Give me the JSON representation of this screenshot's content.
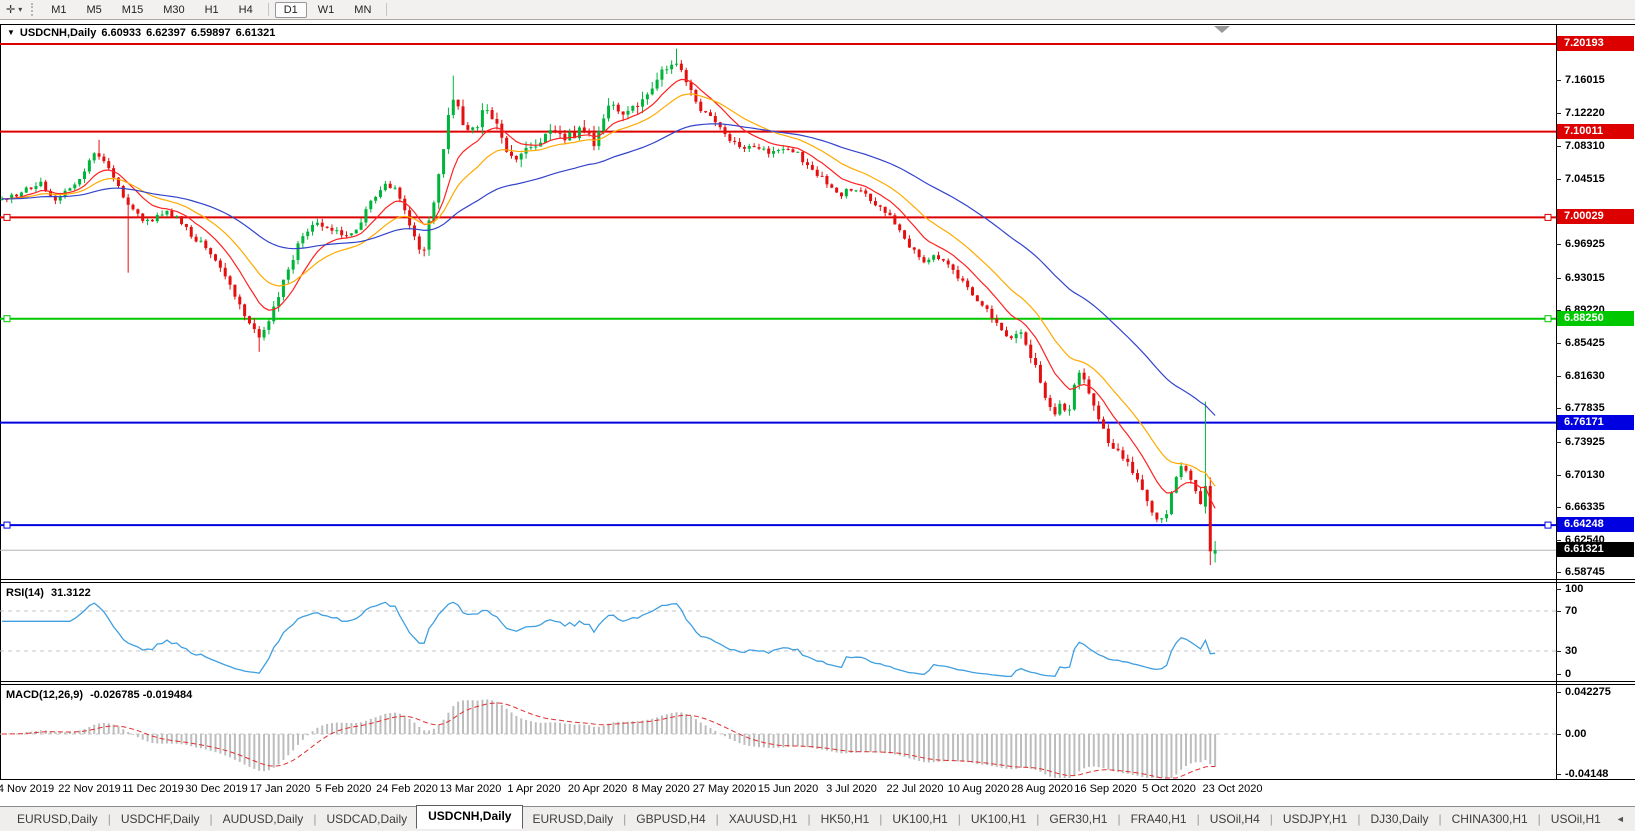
{
  "toolbar": {
    "timeframes": [
      "M1",
      "M5",
      "M15",
      "M30",
      "H1",
      "H4",
      "D1",
      "W1",
      "MN"
    ],
    "active_timeframe": "D1"
  },
  "icons": {
    "pointer_tool": "✛",
    "pointer_dropdown": "▾",
    "chart_dropdown": "▼",
    "scroll_left": "◄",
    "scroll_right": "►"
  },
  "chart_header": {
    "symbol": "USDCNH,Daily",
    "open": "6.60933",
    "high": "6.62397",
    "low": "6.59897",
    "close": "6.61321"
  },
  "rsi_panel": {
    "label": "RSI(14)",
    "value": "31.3122"
  },
  "macd_panel": {
    "label": "MACD(12,26,9)",
    "values": "-0.026785 -0.019484"
  },
  "time_axis": {
    "labels": [
      "4 Nov 2019",
      "22 Nov 2019",
      "11 Dec 2019",
      "30 Dec 2019",
      "17 Jan 2020",
      "5 Feb 2020",
      "24 Feb 2020",
      "13 Mar 2020",
      "1 Apr 2020",
      "20 Apr 2020",
      "8 May 2020",
      "27 May 2020",
      "15 Jun 2020",
      "3 Jul 2020",
      "22 Jul 2020",
      "10 Aug 2020",
      "28 Aug 2020",
      "16 Sep 2020",
      "5 Oct 2020",
      "23 Oct 2020"
    ]
  },
  "tab_bar": {
    "items": [
      "EURUSD,Daily",
      "USDCHF,Daily",
      "AUDUSD,Daily",
      "USDCAD,Daily",
      "USDCNH,Daily",
      "EURUSD,Daily",
      "GBPUSD,H4",
      "XAUUSD,H1",
      "HK50,H1",
      "UK100,H1",
      "UK100,H1",
      "GER30,H1",
      "FRA40,H1",
      "USOil,H4",
      "USDJPY,H1",
      "DJ30,Daily",
      "CHINA300,H1",
      "USOil,H1"
    ],
    "active_index": 4
  },
  "chart_data": {
    "type": "candlestick",
    "symbol": "USDCNH",
    "timeframe": "Daily",
    "last_bar": {
      "open": 6.60933,
      "high": 6.62397,
      "low": 6.59897,
      "close": 6.61321
    },
    "price_axis_range": {
      "top": 7.2252,
      "bottom": 6.5798
    },
    "y_ticks": [
      7.16015,
      7.1222,
      7.0831,
      7.04515,
      6.96925,
      6.93015,
      6.8922,
      6.85425,
      6.8163,
      6.77835,
      6.73925,
      6.7013,
      6.66335,
      6.6254,
      6.58745
    ],
    "levels": [
      {
        "value": 7.20193,
        "color": "#dd0000",
        "selected": false
      },
      {
        "value": 7.10011,
        "color": "#dd0000",
        "selected": false
      },
      {
        "value": 7.00029,
        "color": "#dd0000",
        "selected": true
      },
      {
        "value": 6.8825,
        "color": "#00c800",
        "selected": true
      },
      {
        "value": 6.76171,
        "color": "#0000e0",
        "selected": false
      },
      {
        "value": 6.64248,
        "color": "#0000e0",
        "selected": true
      }
    ],
    "current_price": 6.61321,
    "close_path": [
      [
        2,
        7.02
      ],
      [
        20,
        7.028
      ],
      [
        40,
        7.04
      ],
      [
        55,
        7.022
      ],
      [
        70,
        7.032
      ],
      [
        85,
        7.055
      ],
      [
        97,
        7.078
      ],
      [
        110,
        7.052
      ],
      [
        125,
        7.022
      ],
      [
        135,
        7.004
      ],
      [
        150,
        6.994
      ],
      [
        165,
        7.008
      ],
      [
        180,
        6.996
      ],
      [
        195,
        6.976
      ],
      [
        210,
        6.962
      ],
      [
        225,
        6.932
      ],
      [
        240,
        6.9
      ],
      [
        252,
        6.872
      ],
      [
        260,
        6.856
      ],
      [
        272,
        6.888
      ],
      [
        288,
        6.942
      ],
      [
        302,
        6.977
      ],
      [
        316,
        6.996
      ],
      [
        330,
        6.988
      ],
      [
        344,
        6.977
      ],
      [
        358,
        6.988
      ],
      [
        372,
        7.021
      ],
      [
        386,
        7.042
      ],
      [
        398,
        7.03
      ],
      [
        410,
        6.993
      ],
      [
        422,
        6.954
      ],
      [
        432,
        7.008
      ],
      [
        442,
        7.073
      ],
      [
        452,
        7.146
      ],
      [
        462,
        7.112
      ],
      [
        474,
        7.104
      ],
      [
        486,
        7.128
      ],
      [
        498,
        7.102
      ],
      [
        510,
        7.067
      ],
      [
        524,
        7.076
      ],
      [
        538,
        7.09
      ],
      [
        552,
        7.099
      ],
      [
        566,
        7.093
      ],
      [
        580,
        7.102
      ],
      [
        594,
        7.088
      ],
      [
        608,
        7.134
      ],
      [
        622,
        7.123
      ],
      [
        636,
        7.13
      ],
      [
        650,
        7.146
      ],
      [
        664,
        7.174
      ],
      [
        676,
        7.184
      ],
      [
        688,
        7.154
      ],
      [
        700,
        7.131
      ],
      [
        714,
        7.111
      ],
      [
        728,
        7.09
      ],
      [
        742,
        7.079
      ],
      [
        756,
        7.086
      ],
      [
        770,
        7.073
      ],
      [
        784,
        7.082
      ],
      [
        798,
        7.073
      ],
      [
        812,
        7.053
      ],
      [
        826,
        7.042
      ],
      [
        840,
        7.026
      ],
      [
        854,
        7.035
      ],
      [
        868,
        7.023
      ],
      [
        882,
        7.011
      ],
      [
        896,
        6.992
      ],
      [
        910,
        6.965
      ],
      [
        924,
        6.949
      ],
      [
        938,
        6.956
      ],
      [
        952,
        6.939
      ],
      [
        966,
        6.922
      ],
      [
        980,
        6.902
      ],
      [
        994,
        6.883
      ],
      [
        1008,
        6.858
      ],
      [
        1020,
        6.87
      ],
      [
        1032,
        6.837
      ],
      [
        1044,
        6.795
      ],
      [
        1052,
        6.771
      ],
      [
        1060,
        6.78
      ],
      [
        1068,
        6.771
      ],
      [
        1078,
        6.826
      ],
      [
        1086,
        6.809
      ],
      [
        1096,
        6.774
      ],
      [
        1106,
        6.744
      ],
      [
        1116,
        6.732
      ],
      [
        1126,
        6.717
      ],
      [
        1136,
        6.699
      ],
      [
        1146,
        6.672
      ],
      [
        1156,
        6.654
      ],
      [
        1164,
        6.648
      ],
      [
        1172,
        6.678
      ],
      [
        1180,
        6.711
      ],
      [
        1188,
        6.702
      ],
      [
        1196,
        6.678
      ],
      [
        1204,
        6.666
      ],
      [
        1211,
        6.688
      ],
      [
        1215,
        6.613
      ]
    ],
    "wick_overrides": [
      {
        "x": 97,
        "high": 7.0905
      },
      {
        "x": 128,
        "low": 6.936
      },
      {
        "x": 258,
        "low": 6.844
      },
      {
        "x": 452,
        "high": 7.1652
      },
      {
        "x": 676,
        "high": 7.1965
      }
    ],
    "last_bars": [
      {
        "o": 6.664,
        "h": 6.786,
        "l": 6.656,
        "c": 6.688
      },
      {
        "o": 6.688,
        "h": 6.698,
        "l": 6.596,
        "c": 6.612
      },
      {
        "o": 6.60933,
        "h": 6.62397,
        "l": 6.59897,
        "c": 6.61321
      }
    ],
    "volatility_zones": [
      {
        "from": 225,
        "to": 305,
        "factor": 1.3
      },
      {
        "from": 415,
        "to": 705,
        "factor": 1.8
      },
      {
        "from": 1000,
        "to": 1216,
        "factor": 1.25
      }
    ],
    "bar_count": 251,
    "first_bar_x": 2,
    "bar_step": 4.8525,
    "seed": 20,
    "moving_averages": [
      {
        "type": "ema",
        "period": 10,
        "color_key": "ma_fast"
      },
      {
        "type": "ema",
        "period": 21,
        "color_key": "ma_mid"
      },
      {
        "type": "ema",
        "period": 55,
        "color_key": "ma_slow"
      }
    ],
    "rsi": {
      "period": 14,
      "current": 31.3122,
      "dashed_levels": [
        70,
        30
      ],
      "axis_ticks": [
        {
          "v": 100,
          "label": "100"
        },
        {
          "v": 70,
          "label": "70"
        },
        {
          "v": 30,
          "label": "30"
        },
        {
          "v": 0,
          "label": "0"
        }
      ]
    },
    "macd": {
      "fast": 12,
      "slow": 26,
      "signal": 9,
      "current_macd": -0.026785,
      "current_signal": -0.019484,
      "axis_ticks": [
        {
          "v": 0.042275,
          "label": "0.042275"
        },
        {
          "v": 0,
          "label": "0.00"
        },
        {
          "v": -0.04148,
          "label": "-0.04148"
        }
      ]
    },
    "macd_axis_range": {
      "top": 0.0492,
      "bottom": -0.0452
    },
    "colors": {
      "up": "#00b43b",
      "down": "#e41010",
      "ma_fast": "#ff2222",
      "ma_mid": "#ffaa00",
      "ma_slow": "#3344cc",
      "rsi": "#3f9fe0",
      "macd_hist": "#bdbdbd",
      "macd_signal": "#e03030",
      "dashed_grid": "#c4c4c4",
      "current_price_line": "#b4b4b4",
      "current_price_badge": "#000000",
      "level_red": "#dd0000",
      "level_green": "#00c800",
      "level_blue": "#0000e0"
    }
  }
}
